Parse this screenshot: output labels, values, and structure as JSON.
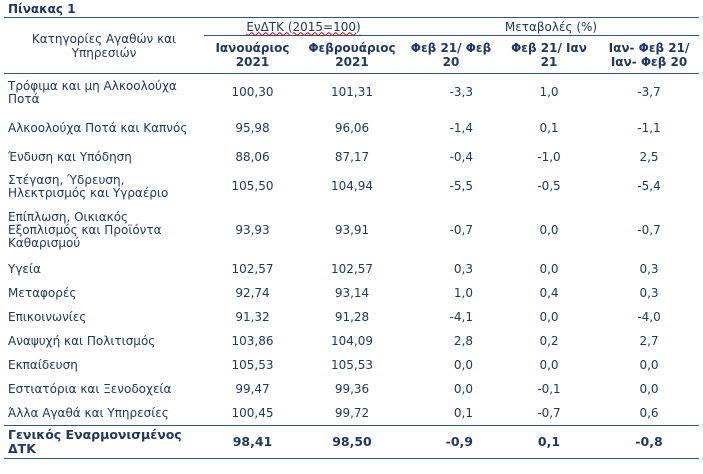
{
  "title": "Πίνακας 1",
  "headers": {
    "category": "Κατηγορίες Αγαθών και Υπηρεσιών",
    "group_index": "ΕνΔΤΚ (2015=100)",
    "group_changes": "Μεταβολές (%)",
    "jan": "Ιανουάριος 2021",
    "feb": "Φεβρουάριος 2021",
    "ch1": "Φεβ 21/ Φεβ 20",
    "ch2": "Φεβ 21/ Ιαν 21",
    "ch3": "Ιαν- Φεβ 21/ Ιαν- Φεβ 20"
  },
  "rows": [
    {
      "cat": "Τρόφιμα και μη Αλκοολούχα Ποτά",
      "jan": "100,30",
      "feb": "101,31",
      "c1": "-3,3",
      "c2": "1,0",
      "c3": "-3,7"
    },
    {
      "cat": "Αλκοολούχα Ποτά και Καπνός",
      "jan": "95,98",
      "feb": "96,06",
      "c1": "-1,4",
      "c2": "0,1",
      "c3": "-1,1"
    },
    {
      "cat": "Ένδυση και Υπόδηση",
      "jan": "88,06",
      "feb": "87,17",
      "c1": "-0,4",
      "c2": "-1,0",
      "c3": "2,5"
    },
    {
      "cat": "Στέγαση, Ύδρευση, Ηλεκτρισμός και Υγραέριο",
      "jan": "105,50",
      "feb": "104,94",
      "c1": "-5,5",
      "c2": "-0,5",
      "c3": "-5,4"
    },
    {
      "cat": "Επίπλωση, Οικιακός Εξοπλισμός και Προϊόντα Καθαρισμού",
      "jan": "93,93",
      "feb": "93,91",
      "c1": "-0,7",
      "c2": "0,0",
      "c3": "-0,7"
    },
    {
      "cat": "Υγεία",
      "jan": "102,57",
      "feb": "102,57",
      "c1": "0,3",
      "c2": "0,0",
      "c3": "0,3"
    },
    {
      "cat": "Μεταφορές",
      "jan": "92,74",
      "feb": "93,14",
      "c1": "1,0",
      "c2": "0,4",
      "c3": "0,3"
    },
    {
      "cat": "Επικοινωνίες",
      "jan": "91,32",
      "feb": "91,28",
      "c1": "-4,1",
      "c2": "0,0",
      "c3": "-4,0"
    },
    {
      "cat": "Αναψυχή και Πολιτισμός",
      "jan": "103,86",
      "feb": "104,09",
      "c1": "2,8",
      "c2": "0,2",
      "c3": "2,7"
    },
    {
      "cat": "Εκπαίδευση",
      "jan": "105,53",
      "feb": "105,53",
      "c1": "0,0",
      "c2": "0,0",
      "c3": "0,0"
    },
    {
      "cat": "Εστιατόρια και Ξενοδοχεία",
      "jan": "99,47",
      "feb": "99,36",
      "c1": "0,0",
      "c2": "-0,1",
      "c3": "0,0"
    },
    {
      "cat": "Άλλα Αγαθά και Υπηρεσίες",
      "jan": "100,45",
      "feb": "99,72",
      "c1": "0,1",
      "c2": "-0,7",
      "c3": "0,6"
    }
  ],
  "total": {
    "cat": "Γενικός Εναρμονισμένος ΔΤΚ",
    "jan": "98,41",
    "feb": "98,50",
    "c1": "-0,9",
    "c2": "0,1",
    "c3": "-0,8"
  }
}
